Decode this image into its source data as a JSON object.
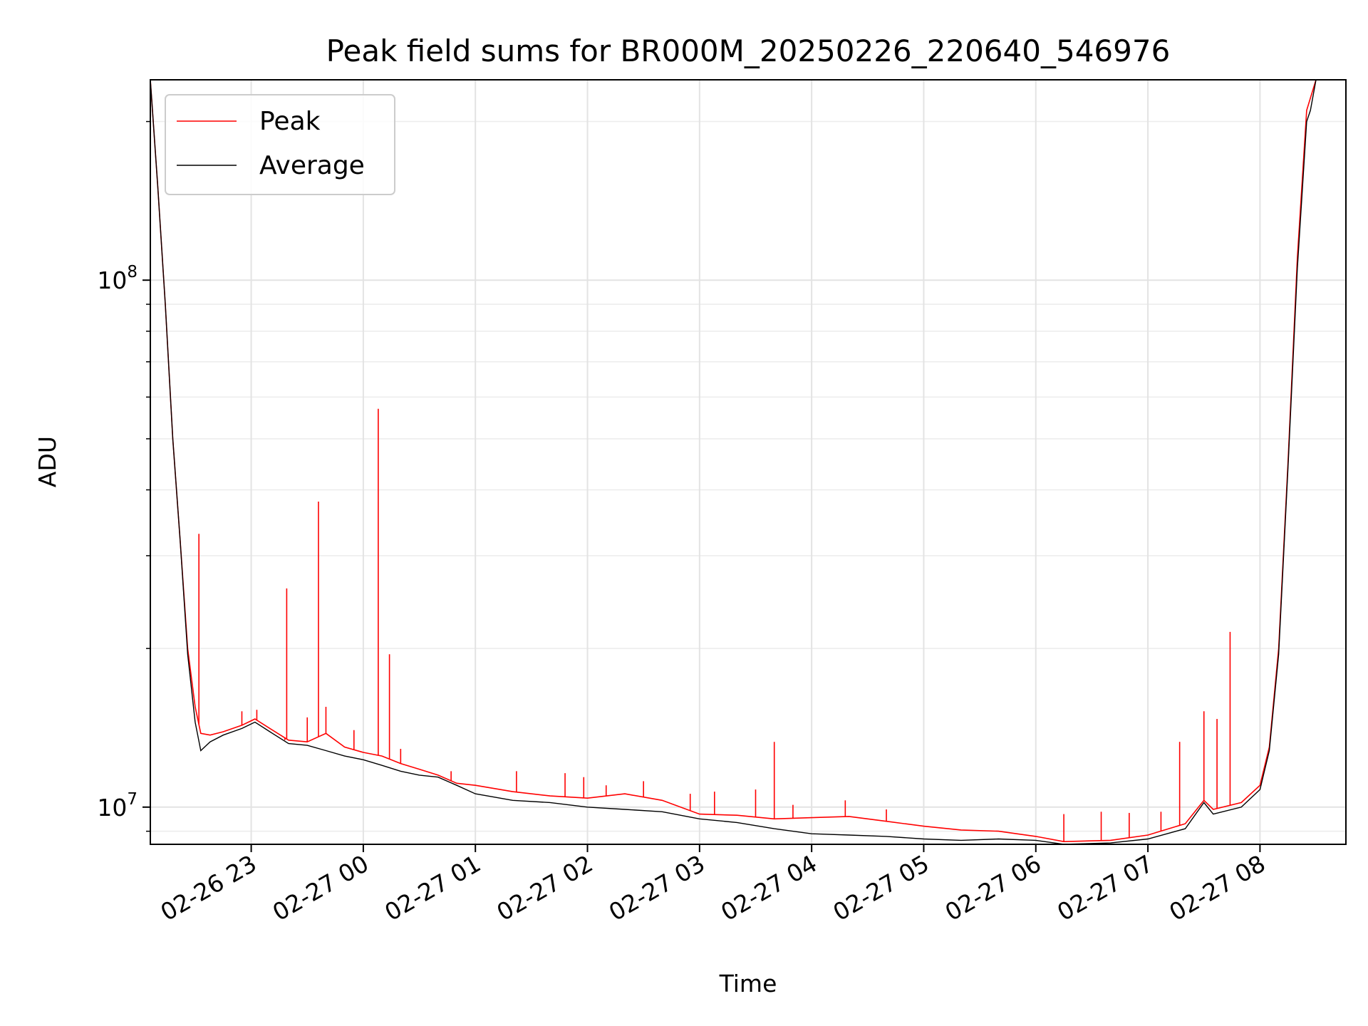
{
  "chart_data": {
    "type": "line",
    "title": "Peak field sums for BR000M_20250226_220640_546976",
    "xlabel": "Time",
    "ylabel": "ADU",
    "yscale": "log",
    "ylim": [
      8500000,
      240000000
    ],
    "xlim": [
      "2025-02-26 22:06",
      "2025-02-27 08:46"
    ],
    "x_ticks": [
      {
        "t": "2025-02-26 23:00",
        "label": "02-26 23"
      },
      {
        "t": "2025-02-27 00:00",
        "label": "02-27 00"
      },
      {
        "t": "2025-02-27 01:00",
        "label": "02-27 01"
      },
      {
        "t": "2025-02-27 02:00",
        "label": "02-27 02"
      },
      {
        "t": "2025-02-27 03:00",
        "label": "02-27 03"
      },
      {
        "t": "2025-02-27 04:00",
        "label": "02-27 04"
      },
      {
        "t": "2025-02-27 05:00",
        "label": "02-27 05"
      },
      {
        "t": "2025-02-27 06:00",
        "label": "02-27 06"
      },
      {
        "t": "2025-02-27 07:00",
        "label": "02-27 07"
      },
      {
        "t": "2025-02-27 08:00",
        "label": "02-27 08"
      }
    ],
    "y_ticks": [
      {
        "v": 10000000,
        "base": "10",
        "exp": "7"
      },
      {
        "v": 100000000,
        "base": "10",
        "exp": "8"
      }
    ],
    "grid": true,
    "legend": "upper-left",
    "series": [
      {
        "name": "Peak",
        "color": "#ff0000",
        "points": [
          [
            "2025-02-26 22:06",
            240000000
          ],
          [
            "2025-02-26 22:10",
            150000000
          ],
          [
            "2025-02-26 22:14",
            90000000
          ],
          [
            "2025-02-26 22:18",
            50000000
          ],
          [
            "2025-02-26 22:22",
            32000000
          ],
          [
            "2025-02-26 22:26",
            20000000
          ],
          [
            "2025-02-26 22:30",
            15500000
          ],
          [
            "2025-02-26 22:33",
            13800000
          ],
          [
            "2025-02-26 22:38",
            13700000
          ],
          [
            "2025-02-26 22:45",
            13900000
          ],
          [
            "2025-02-26 22:55",
            14300000
          ],
          [
            "2025-02-26 23:02",
            14700000
          ],
          [
            "2025-02-26 23:10",
            14100000
          ],
          [
            "2025-02-26 23:20",
            13400000
          ],
          [
            "2025-02-26 23:30",
            13300000
          ],
          [
            "2025-02-26 23:40",
            13800000
          ],
          [
            "2025-02-26 23:50",
            13000000
          ],
          [
            "2025-02-27 00:00",
            12700000
          ],
          [
            "2025-02-27 00:10",
            12500000
          ],
          [
            "2025-02-27 00:20",
            12100000
          ],
          [
            "2025-02-27 00:30",
            11800000
          ],
          [
            "2025-02-27 00:40",
            11500000
          ],
          [
            "2025-02-27 00:50",
            11100000
          ],
          [
            "2025-02-27 01:00",
            11000000
          ],
          [
            "2025-02-27 01:20",
            10700000
          ],
          [
            "2025-02-27 01:40",
            10500000
          ],
          [
            "2025-02-27 02:00",
            10400000
          ],
          [
            "2025-02-27 02:20",
            10600000
          ],
          [
            "2025-02-27 02:40",
            10300000
          ],
          [
            "2025-02-27 03:00",
            9700000
          ],
          [
            "2025-02-27 03:20",
            9650000
          ],
          [
            "2025-02-27 03:40",
            9500000
          ],
          [
            "2025-02-27 04:00",
            9550000
          ],
          [
            "2025-02-27 04:20",
            9600000
          ],
          [
            "2025-02-27 04:40",
            9400000
          ],
          [
            "2025-02-27 05:00",
            9200000
          ],
          [
            "2025-02-27 05:20",
            9050000
          ],
          [
            "2025-02-27 05:40",
            9000000
          ],
          [
            "2025-02-27 06:00",
            8800000
          ],
          [
            "2025-02-27 06:15",
            8600000
          ],
          [
            "2025-02-27 06:40",
            8650000
          ],
          [
            "2025-02-27 07:00",
            8850000
          ],
          [
            "2025-02-27 07:20",
            9300000
          ],
          [
            "2025-02-27 07:30",
            10300000
          ],
          [
            "2025-02-27 07:35",
            9900000
          ],
          [
            "2025-02-27 07:50",
            10200000
          ],
          [
            "2025-02-27 08:00",
            11000000
          ],
          [
            "2025-02-27 08:05",
            13000000
          ],
          [
            "2025-02-27 08:10",
            20000000
          ],
          [
            "2025-02-27 08:15",
            45000000
          ],
          [
            "2025-02-27 08:20",
            110000000
          ],
          [
            "2025-02-27 08:25",
            210000000
          ],
          [
            "2025-02-27 08:30",
            240000000
          ]
        ],
        "spikes": [
          [
            "2025-02-26 22:32",
            33000000
          ],
          [
            "2025-02-26 22:55",
            15200000
          ],
          [
            "2025-02-26 23:03",
            15300000
          ],
          [
            "2025-02-26 23:18",
            13400000
          ],
          [
            "2025-02-26 23:19",
            26000000
          ],
          [
            "2025-02-26 23:30",
            14800000
          ],
          [
            "2025-02-26 23:36",
            38000000
          ],
          [
            "2025-02-26 23:40",
            15500000
          ],
          [
            "2025-02-26 23:55",
            14000000
          ],
          [
            "2025-02-27 00:08",
            57000000
          ],
          [
            "2025-02-27 00:14",
            19500000
          ],
          [
            "2025-02-27 00:20",
            12900000
          ],
          [
            "2025-02-27 00:47",
            11700000
          ],
          [
            "2025-02-27 01:22",
            11700000
          ],
          [
            "2025-02-27 01:48",
            11600000
          ],
          [
            "2025-02-27 01:58",
            11400000
          ],
          [
            "2025-02-27 02:10",
            11000000
          ],
          [
            "2025-02-27 02:30",
            11200000
          ],
          [
            "2025-02-27 02:55",
            10600000
          ],
          [
            "2025-02-27 03:08",
            10700000
          ],
          [
            "2025-02-27 03:30",
            10800000
          ],
          [
            "2025-02-27 03:40",
            13300000
          ],
          [
            "2025-02-27 03:50",
            10100000
          ],
          [
            "2025-02-27 04:18",
            10300000
          ],
          [
            "2025-02-27 04:40",
            9900000
          ],
          [
            "2025-02-27 06:15",
            9700000
          ],
          [
            "2025-02-27 06:35",
            9800000
          ],
          [
            "2025-02-27 06:50",
            9750000
          ],
          [
            "2025-02-27 07:07",
            9800000
          ],
          [
            "2025-02-27 07:17",
            13300000
          ],
          [
            "2025-02-27 07:30",
            15200000
          ],
          [
            "2025-02-27 07:37",
            14700000
          ],
          [
            "2025-02-27 07:44",
            21500000
          ]
        ]
      },
      {
        "name": "Average",
        "color": "#000000",
        "points": [
          [
            "2025-02-26 22:06",
            240000000
          ],
          [
            "2025-02-26 22:10",
            150000000
          ],
          [
            "2025-02-26 22:14",
            90000000
          ],
          [
            "2025-02-26 22:18",
            50000000
          ],
          [
            "2025-02-26 22:22",
            32000000
          ],
          [
            "2025-02-26 22:26",
            19500000
          ],
          [
            "2025-02-26 22:30",
            14500000
          ],
          [
            "2025-02-26 22:33",
            12800000
          ],
          [
            "2025-02-26 22:38",
            13300000
          ],
          [
            "2025-02-26 22:45",
            13700000
          ],
          [
            "2025-02-26 22:55",
            14100000
          ],
          [
            "2025-02-26 23:02",
            14500000
          ],
          [
            "2025-02-26 23:10",
            13900000
          ],
          [
            "2025-02-26 23:20",
            13200000
          ],
          [
            "2025-02-26 23:30",
            13100000
          ],
          [
            "2025-02-26 23:40",
            12800000
          ],
          [
            "2025-02-26 23:50",
            12500000
          ],
          [
            "2025-02-27 00:00",
            12300000
          ],
          [
            "2025-02-27 00:10",
            12000000
          ],
          [
            "2025-02-27 00:20",
            11700000
          ],
          [
            "2025-02-27 00:30",
            11500000
          ],
          [
            "2025-02-27 00:40",
            11400000
          ],
          [
            "2025-02-27 00:50",
            11000000
          ],
          [
            "2025-02-27 01:00",
            10600000
          ],
          [
            "2025-02-27 01:20",
            10300000
          ],
          [
            "2025-02-27 01:40",
            10200000
          ],
          [
            "2025-02-27 02:00",
            10000000
          ],
          [
            "2025-02-27 02:20",
            9900000
          ],
          [
            "2025-02-27 02:40",
            9800000
          ],
          [
            "2025-02-27 03:00",
            9500000
          ],
          [
            "2025-02-27 03:20",
            9350000
          ],
          [
            "2025-02-27 03:40",
            9100000
          ],
          [
            "2025-02-27 04:00",
            8900000
          ],
          [
            "2025-02-27 04:20",
            8850000
          ],
          [
            "2025-02-27 04:40",
            8800000
          ],
          [
            "2025-02-27 05:00",
            8700000
          ],
          [
            "2025-02-27 05:20",
            8650000
          ],
          [
            "2025-02-27 05:40",
            8700000
          ],
          [
            "2025-02-27 06:00",
            8650000
          ],
          [
            "2025-02-27 06:15",
            8500000
          ],
          [
            "2025-02-27 06:40",
            8550000
          ],
          [
            "2025-02-27 07:00",
            8700000
          ],
          [
            "2025-02-27 07:20",
            9100000
          ],
          [
            "2025-02-27 07:30",
            10200000
          ],
          [
            "2025-02-27 07:35",
            9700000
          ],
          [
            "2025-02-27 07:50",
            10000000
          ],
          [
            "2025-02-27 08:00",
            10800000
          ],
          [
            "2025-02-27 08:05",
            12800000
          ],
          [
            "2025-02-27 08:10",
            19500000
          ],
          [
            "2025-02-27 08:15",
            44000000
          ],
          [
            "2025-02-27 08:20",
            105000000
          ],
          [
            "2025-02-27 08:25",
            200000000
          ],
          [
            "2025-02-27 08:27",
            210000000
          ],
          [
            "2025-02-27 08:30",
            240000000
          ]
        ]
      }
    ]
  }
}
